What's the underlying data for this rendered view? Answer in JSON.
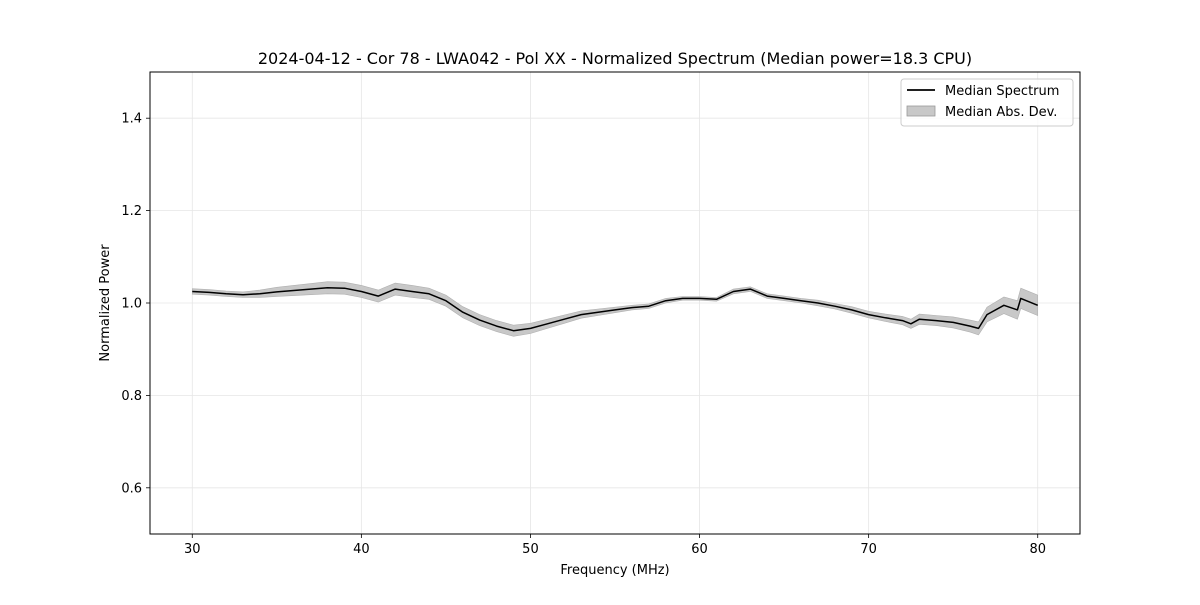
{
  "chart_data": {
    "type": "line",
    "title": "2024-04-12 - Cor 78 - LWA042 - Pol XX - Normalized Spectrum (Median power=18.3 CPU)",
    "xlabel": "Frequency (MHz)",
    "ylabel": "Normalized Power",
    "xlim": [
      27.5,
      82.5
    ],
    "ylim": [
      0.5,
      1.5
    ],
    "xticks": [
      30,
      40,
      50,
      60,
      70,
      80
    ],
    "yticks": [
      0.6,
      0.8,
      1.0,
      1.2,
      1.4
    ],
    "xtick_labels": [
      "30",
      "40",
      "50",
      "60",
      "70",
      "80"
    ],
    "ytick_labels": [
      "0.6",
      "0.8",
      "1.0",
      "1.2",
      "1.4"
    ],
    "grid": true,
    "legend_position": "top-right",
    "series": [
      {
        "name": "Median Spectrum",
        "kind": "line",
        "color": "#000000",
        "x": [
          30,
          31,
          32,
          33,
          34,
          35,
          36,
          37,
          38,
          39,
          40,
          41,
          42,
          43,
          44,
          45,
          46,
          47,
          48,
          49,
          50,
          51,
          52,
          53,
          54,
          55,
          56,
          57,
          58,
          59,
          60,
          61,
          62,
          63,
          64,
          65,
          66,
          67,
          68,
          69,
          70,
          71,
          72,
          72.5,
          73,
          74,
          75,
          76,
          76.5,
          77,
          78,
          78.8,
          79,
          80
        ],
        "values": [
          1.025,
          1.023,
          1.02,
          1.018,
          1.02,
          1.024,
          1.027,
          1.03,
          1.033,
          1.032,
          1.025,
          1.015,
          1.03,
          1.025,
          1.02,
          1.005,
          0.98,
          0.963,
          0.95,
          0.94,
          0.945,
          0.955,
          0.965,
          0.975,
          0.98,
          0.985,
          0.99,
          0.993,
          1.005,
          1.01,
          1.01,
          1.008,
          1.025,
          1.03,
          1.015,
          1.01,
          1.005,
          1.0,
          0.993,
          0.985,
          0.975,
          0.968,
          0.962,
          0.955,
          0.965,
          0.962,
          0.958,
          0.95,
          0.945,
          0.975,
          0.995,
          0.985,
          1.01,
          0.995
        ]
      },
      {
        "name": "Median Abs. Dev.",
        "kind": "band",
        "color": "#c8c8c8",
        "x": [
          30,
          31,
          32,
          33,
          34,
          35,
          36,
          37,
          38,
          39,
          40,
          41,
          42,
          43,
          44,
          45,
          46,
          47,
          48,
          49,
          50,
          51,
          52,
          53,
          54,
          55,
          56,
          57,
          58,
          59,
          60,
          61,
          62,
          63,
          64,
          65,
          66,
          67,
          68,
          69,
          70,
          71,
          72,
          72.5,
          73,
          74,
          75,
          76,
          76.5,
          77,
          78,
          78.8,
          79,
          80
        ],
        "halfwidth": [
          0.006,
          0.006,
          0.006,
          0.006,
          0.008,
          0.01,
          0.011,
          0.012,
          0.013,
          0.013,
          0.013,
          0.013,
          0.013,
          0.013,
          0.012,
          0.012,
          0.012,
          0.012,
          0.012,
          0.012,
          0.011,
          0.01,
          0.009,
          0.008,
          0.007,
          0.006,
          0.005,
          0.005,
          0.005,
          0.004,
          0.004,
          0.004,
          0.005,
          0.005,
          0.005,
          0.005,
          0.005,
          0.006,
          0.006,
          0.007,
          0.007,
          0.008,
          0.009,
          0.01,
          0.011,
          0.011,
          0.012,
          0.013,
          0.014,
          0.016,
          0.018,
          0.02,
          0.022,
          0.022
        ]
      }
    ]
  }
}
